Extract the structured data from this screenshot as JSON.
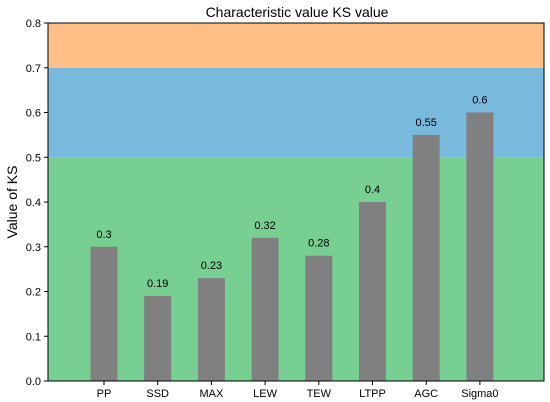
{
  "chart_data": {
    "type": "bar",
    "title": "Characteristic value KS value",
    "xlabel": "",
    "ylabel": "Value of KS",
    "categories": [
      "PP",
      "SSD",
      "MAX",
      "LEW",
      "TEW",
      "LTPP",
      "AGC",
      "Sigma0"
    ],
    "values": [
      0.3,
      0.19,
      0.23,
      0.32,
      0.28,
      0.4,
      0.55,
      0.6
    ],
    "data_labels": [
      "0.3",
      "0.19",
      "0.23",
      "0.32",
      "0.28",
      "0.4",
      "0.55",
      "0.6"
    ],
    "ylim": [
      0,
      0.8
    ],
    "yticks": [
      "0.0",
      "0.1",
      "0.2",
      "0.3",
      "0.4",
      "0.5",
      "0.6",
      "0.7",
      "0.8"
    ],
    "grid": false,
    "bar_color": "#808080",
    "background_bands": [
      {
        "from": 0.0,
        "to": 0.5,
        "color": "#77cf91"
      },
      {
        "from": 0.5,
        "to": 0.7,
        "color": "#78b9dc"
      },
      {
        "from": 0.7,
        "to": 0.8,
        "color": "#ffbf86"
      }
    ]
  }
}
